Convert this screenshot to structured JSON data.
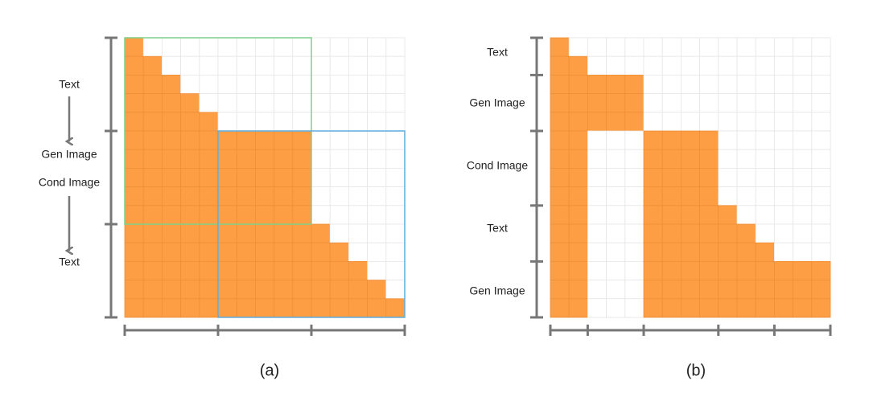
{
  "panel_a": {
    "labels": [
      "Text",
      "Gen Image",
      "Cond Image",
      "Text"
    ],
    "caption": "(a)"
  },
  "panel_b": {
    "labels": [
      "Text",
      "Gen Image",
      "Cond Image",
      "Text",
      "Gen Image"
    ],
    "caption": "(b)"
  }
}
